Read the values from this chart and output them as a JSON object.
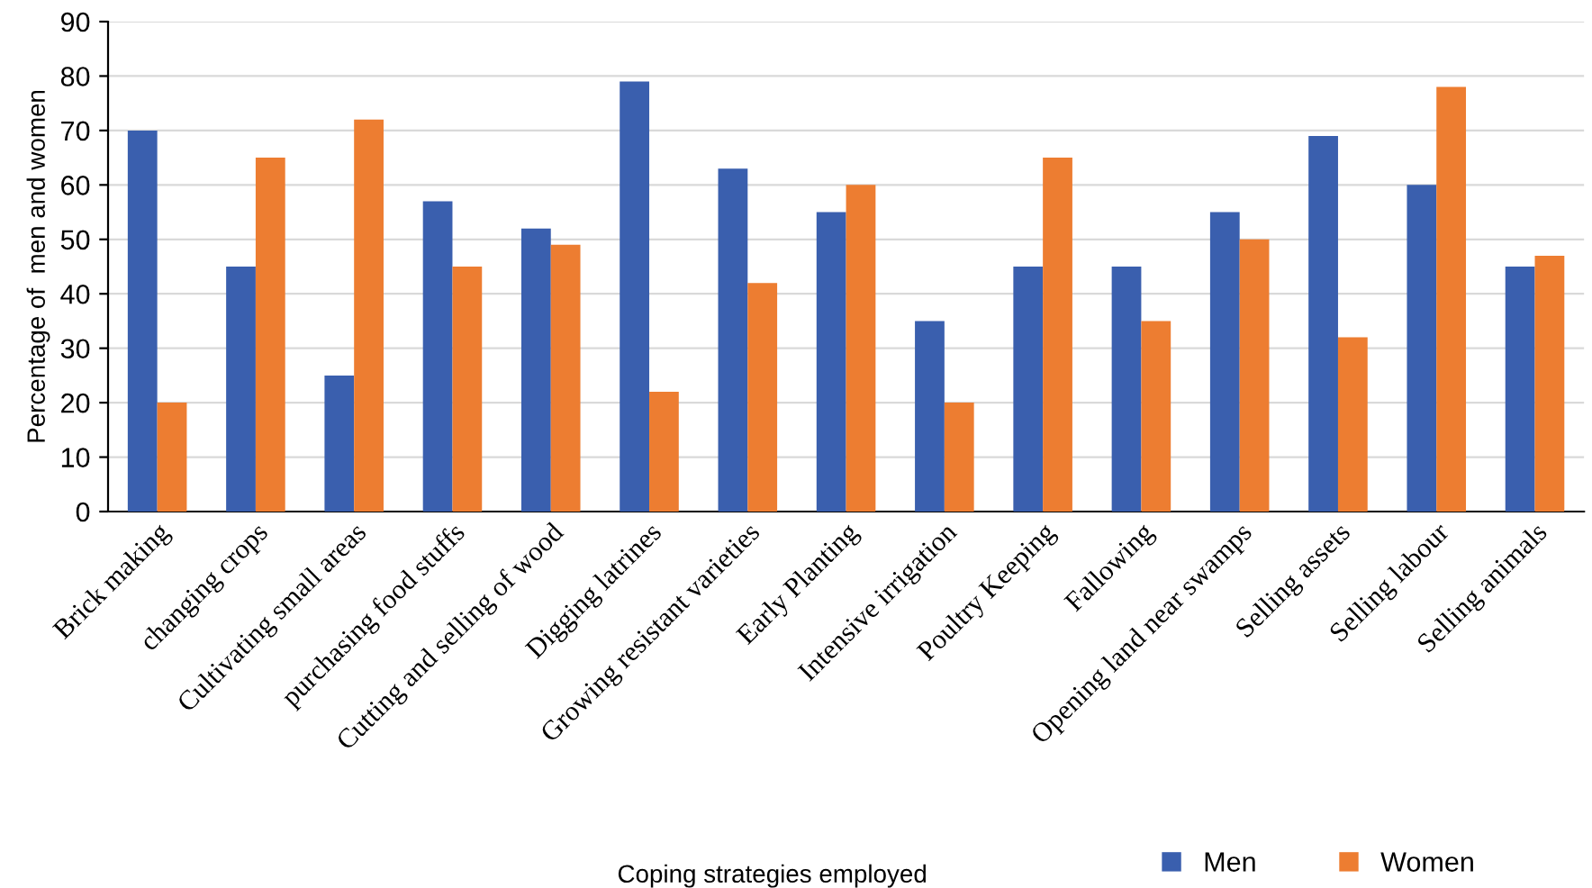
{
  "chart_data": {
    "type": "bar",
    "xlabel": "Coping strategies employed",
    "ylabel": "Percentage of  men and women",
    "categories": [
      "Brick making",
      "changing crops",
      "Cultivating small areas",
      "purchasing food stuffs",
      "Cutting and selling of wood",
      "Digging latrines",
      "Growing resistant varieties",
      "Early Planting",
      "Intensive irrigation",
      "Poultry Keeping",
      "Fallowing",
      "Opening land near swamps",
      "Selling assets",
      "Selling labour",
      "Selling animals"
    ],
    "series": [
      {
        "name": "Men",
        "color": "#3a5fae",
        "values": [
          70,
          45,
          25,
          57,
          52,
          79,
          63,
          55,
          35,
          45,
          45,
          55,
          69,
          60,
          45
        ]
      },
      {
        "name": "Women",
        "color": "#ed7d31",
        "values": [
          20,
          65,
          72,
          45,
          49,
          22,
          42,
          60,
          20,
          65,
          35,
          50,
          32,
          78,
          47
        ]
      }
    ],
    "ylim": [
      0,
      90
    ],
    "yticks": [
      0,
      10,
      20,
      30,
      40,
      50,
      60,
      70,
      80,
      90
    ],
    "grid": "y",
    "legend": "bottom right"
  }
}
